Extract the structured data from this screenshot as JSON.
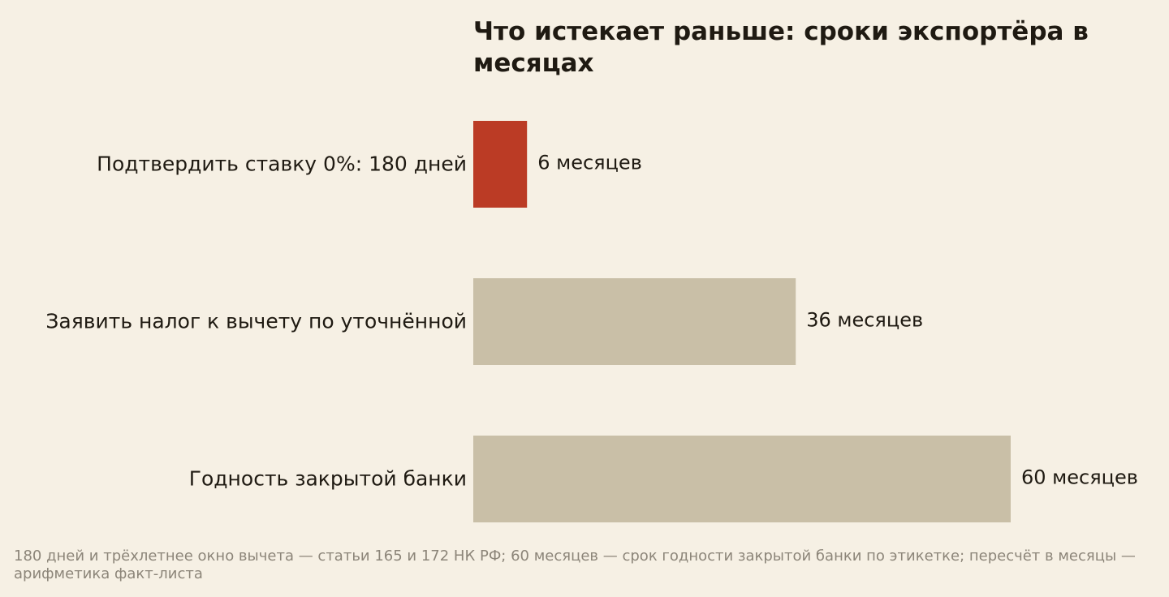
{
  "chart_data": {
    "type": "bar",
    "orientation": "horizontal",
    "title": "Что истекает раньше: сроки экспортёра в месяцах",
    "categories": [
      "Подтвердить ставку 0%: 180 дней",
      "Заявить налог к вычету по уточнённой",
      "Годность закрытой банки"
    ],
    "values": [
      6,
      36,
      60
    ],
    "value_labels": [
      "6 месяцев",
      "36 месяцев",
      "60 месяцев"
    ],
    "colors": [
      "#bb3b25",
      "#c9bfa7",
      "#c9bfa7"
    ],
    "xlim": [
      0,
      60
    ],
    "grid": false,
    "legend": "none",
    "source": "180 дней и трёхлетнее окно вычета — статьи 165 и 172 НК РФ; 60 месяцев — срок годности закрытой банки по этикетке; пересчёт в месяцы — арифметика факт-листа"
  }
}
